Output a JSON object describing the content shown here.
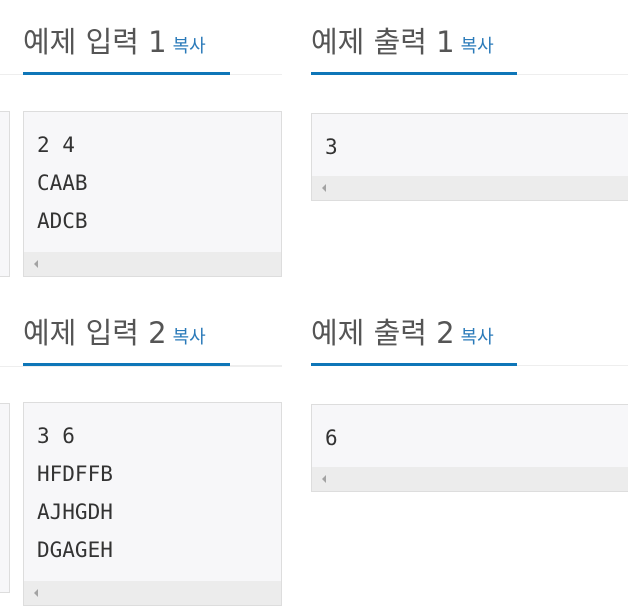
{
  "samples": [
    {
      "title": "예제 입력 1",
      "copy": "복사",
      "lines": [
        "2 4",
        "CAAB",
        "ADCB"
      ]
    },
    {
      "title": "예제 출력 1",
      "copy": "복사",
      "lines": [
        "3"
      ]
    },
    {
      "title": "예제 입력 2",
      "copy": "복사",
      "lines": [
        "3 6",
        "HFDFFB",
        "AJHGDH",
        "DGAGEH"
      ]
    },
    {
      "title": "예제 출력 2",
      "copy": "복사",
      "lines": [
        "6"
      ]
    }
  ]
}
